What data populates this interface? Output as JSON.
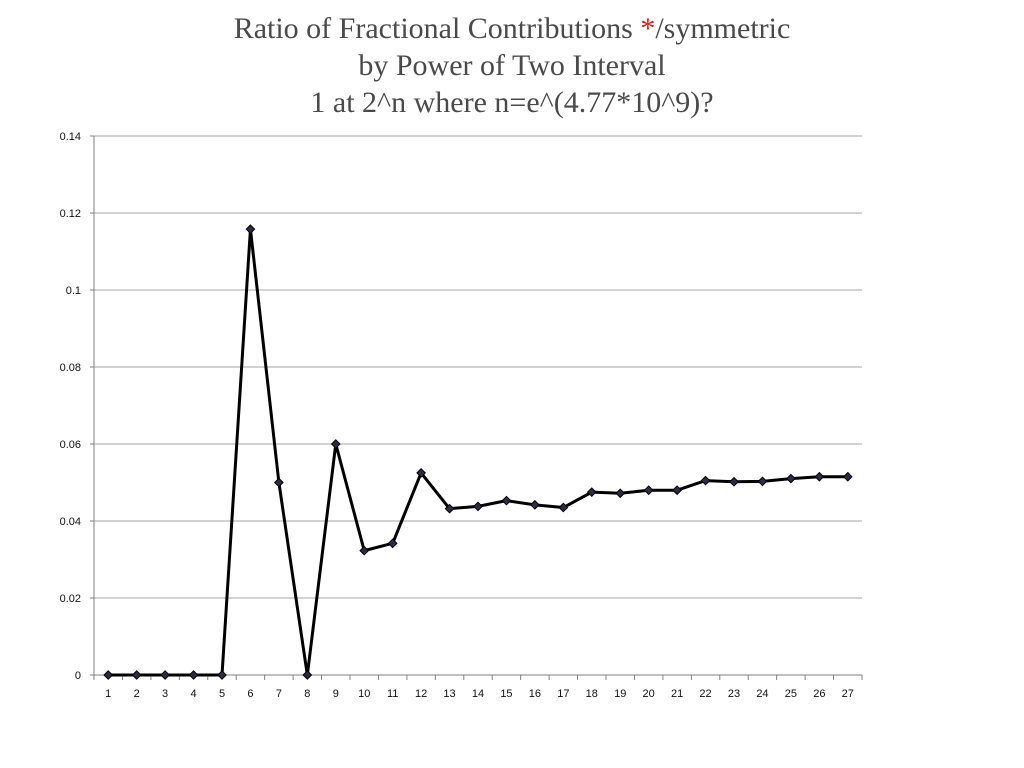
{
  "chart_data": {
    "type": "line",
    "title_parts": {
      "line1_before": "Ratio of Fractional Contributions ",
      "line1_star": "*",
      "line1_after": "/symmetric",
      "line2": "by Power of Two Interval",
      "line3": "1 at 2^n where n=e^(4.77*10^9)?"
    },
    "xlabel": "",
    "ylabel": "",
    "x": [
      1,
      2,
      3,
      4,
      5,
      6,
      7,
      8,
      9,
      10,
      11,
      12,
      13,
      14,
      15,
      16,
      17,
      18,
      19,
      20,
      21,
      22,
      23,
      24,
      25,
      26,
      27
    ],
    "series": [
      {
        "values": [
          0,
          0,
          0,
          0,
          0,
          0.1158,
          0.05,
          0,
          0.06,
          0.0323,
          0.0342,
          0.0525,
          0.0432,
          0.0438,
          0.0453,
          0.0442,
          0.0435,
          0.0475,
          0.0472,
          0.048,
          0.048,
          0.0505,
          0.0502,
          0.0503,
          0.051,
          0.0515,
          0.0515
        ],
        "color": "#000000",
        "marker": "diamond"
      }
    ],
    "yticks": [
      "0",
      "0.02",
      "0.04",
      "0.06",
      "0.08",
      "0.1",
      "0.12",
      "0.14"
    ],
    "xticks": [
      "1",
      "2",
      "3",
      "4",
      "5",
      "6",
      "7",
      "8",
      "9",
      "10",
      "11",
      "12",
      "13",
      "14",
      "15",
      "16",
      "17",
      "18",
      "19",
      "20",
      "21",
      "22",
      "23",
      "24",
      "25",
      "26",
      "27"
    ],
    "ylim": [
      0,
      0.14
    ],
    "grid": true,
    "legend": "none",
    "colors": {
      "title": "#4a4a4a",
      "asterisk": "#cc1f1f",
      "grid": "#a6a6a6",
      "axis": "#808080",
      "line": "#000000",
      "marker_fill": "#2b2b45"
    }
  }
}
